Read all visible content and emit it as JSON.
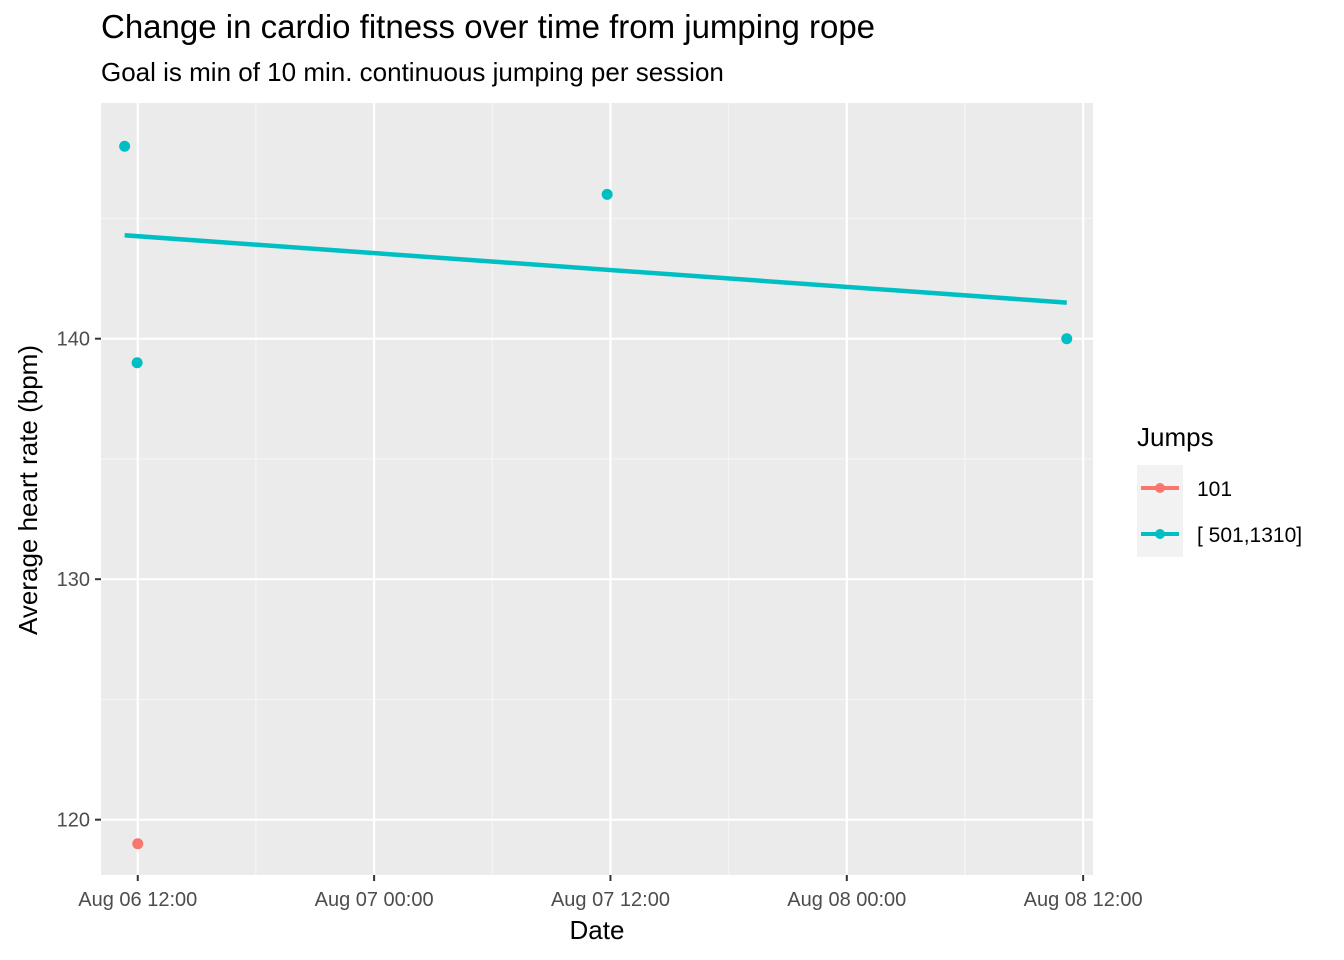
{
  "chart_data": {
    "type": "scatter",
    "title": "Change in cardio fitness over time from jumping rope",
    "subtitle": "Goal is min of 10 min. continuous jumping per session",
    "xlabel": "Date",
    "ylabel": "Average heart rate (bpm)",
    "x_ticks": [
      "Aug 06 12:00",
      "Aug 07 00:00",
      "Aug 07 12:00",
      "Aug 08 00:00",
      "Aug 08 12:00"
    ],
    "y_ticks": [
      120,
      130,
      140
    ],
    "ylim": [
      117.7,
      149.8
    ],
    "xlim": [
      "Aug 06 10:08",
      "Aug 08 12:30"
    ],
    "grid": true,
    "legend_position": "right",
    "legend": {
      "title": "Jumps",
      "entries": [
        " 101",
        "[ 501,1310]"
      ]
    },
    "series": [
      {
        "name": " 101",
        "color": "#F8766D",
        "points": [
          {
            "x": "Aug 06 12:00",
            "y": 119
          }
        ]
      },
      {
        "name": "[ 501,1310]",
        "color": "#00BFC4",
        "points": [
          {
            "x": "Aug 06 11:20",
            "y": 148
          },
          {
            "x": "Aug 06 11:58",
            "y": 139
          },
          {
            "x": "Aug 07 11:50",
            "y": 146
          },
          {
            "x": "Aug 08 11:10",
            "y": 140
          }
        ],
        "trend_line": [
          {
            "x": "Aug 06 11:20",
            "y": 144.3
          },
          {
            "x": "Aug 08 11:10",
            "y": 141.5
          }
        ]
      }
    ]
  }
}
